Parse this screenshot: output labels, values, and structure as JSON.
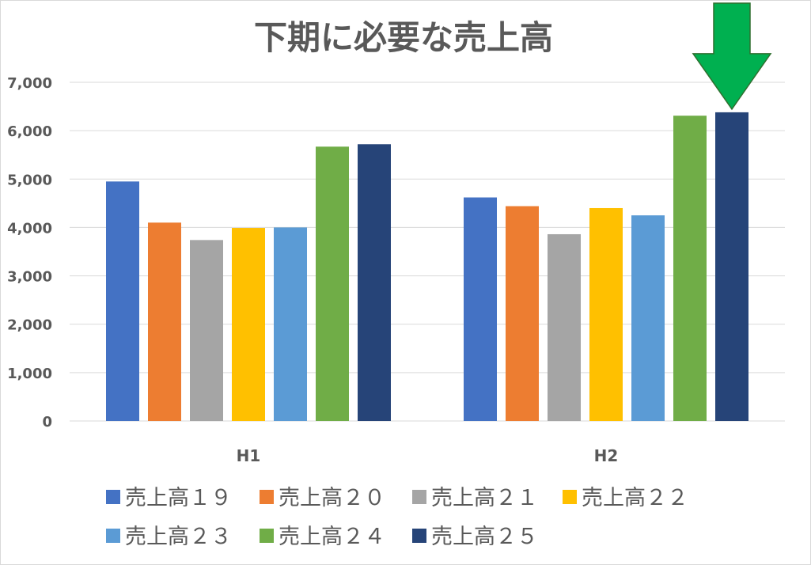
{
  "chart_data": {
    "type": "bar",
    "title": "下期に必要な売上高",
    "xlabel": "",
    "ylabel": "",
    "categories": [
      "H1",
      "H2"
    ],
    "ylim": [
      0,
      7000
    ],
    "yticks": [
      0,
      1000,
      2000,
      3000,
      4000,
      5000,
      6000,
      7000
    ],
    "ytick_labels": [
      "0",
      "1,000",
      "2,000",
      "3,000",
      "4,000",
      "5,000",
      "6,000",
      "7,000"
    ],
    "grid": true,
    "legend_position": "bottom",
    "series": [
      {
        "name": "売上高１９",
        "color": "#4472C4",
        "values": [
          4950,
          4620
        ]
      },
      {
        "name": "売上高２０",
        "color": "#ED7D31",
        "values": [
          4100,
          4440
        ]
      },
      {
        "name": "売上高２１",
        "color": "#A5A5A5",
        "values": [
          3740,
          3860
        ]
      },
      {
        "name": "売上高２２",
        "color": "#FFC000",
        "values": [
          3990,
          4400
        ]
      },
      {
        "name": "売上高２３",
        "color": "#5B9BD5",
        "values": [
          4000,
          4250
        ]
      },
      {
        "name": "売上高２４",
        "color": "#70AD47",
        "values": [
          5670,
          6310
        ]
      },
      {
        "name": "売上高２５",
        "color": "#264478",
        "values": [
          5720,
          6380
        ]
      }
    ],
    "annotations": [
      {
        "type": "arrow",
        "color": "#00B050",
        "direction": "down",
        "target": {
          "category": "H2",
          "series": "売上高２５"
        }
      }
    ]
  }
}
